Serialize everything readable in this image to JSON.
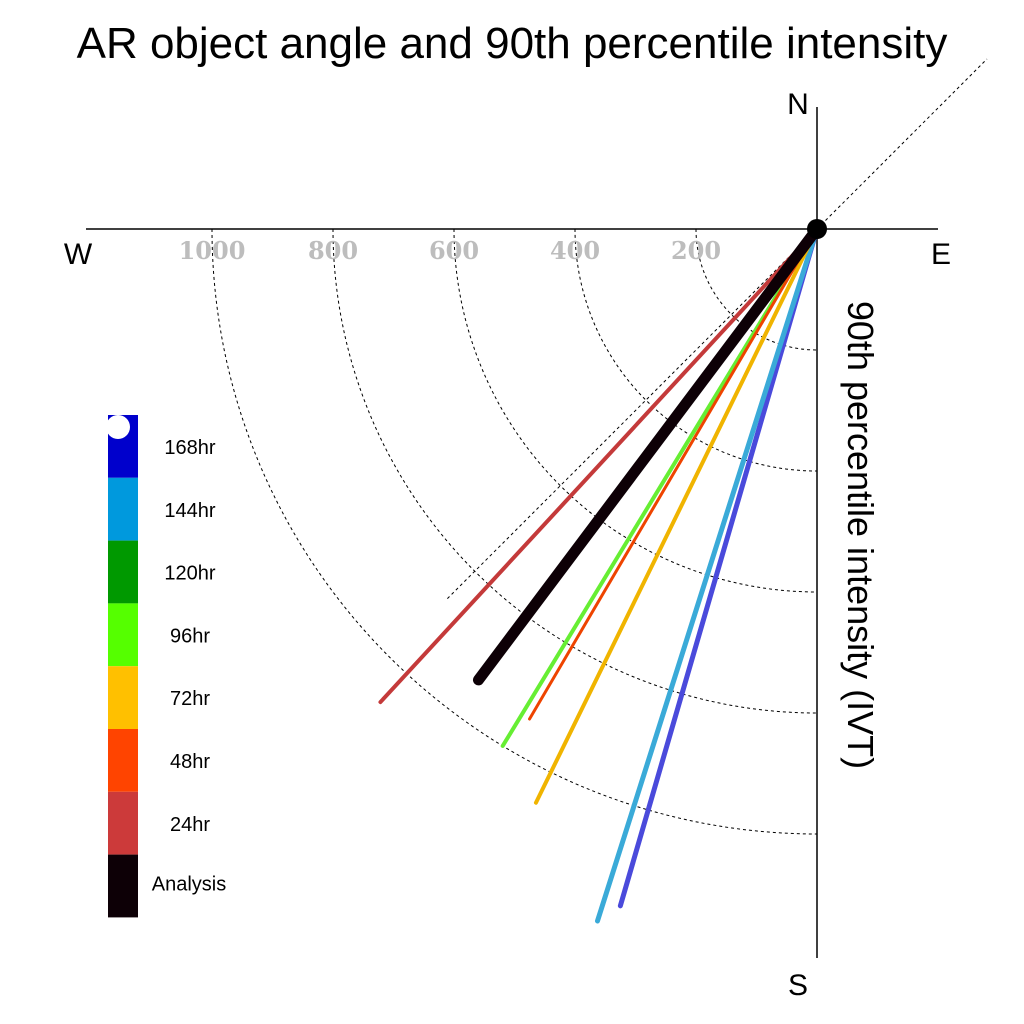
{
  "chart_data": {
    "type": "polar-vector",
    "title": "AR object angle and 90th percentile intensity",
    "ylabel": "90th percentile intensity (IVT)",
    "compass": {
      "north": "N",
      "south": "S",
      "east": "E",
      "west": "W"
    },
    "radial_ticks": [
      "200",
      "400",
      "600",
      "800",
      "1000"
    ],
    "radial_max": 1200,
    "series": [
      {
        "name": "168hr",
        "angle_deg": 196.2,
        "value": 1165,
        "color": "#0000cc",
        "draw": "#4a4adb",
        "width": 5
      },
      {
        "name": "144hr",
        "angle_deg": 197.6,
        "value": 1200,
        "color": "#0099dd",
        "draw": "#3aaad8",
        "width": 5
      },
      {
        "name": "120hr",
        "angle_deg": 211.3,
        "value": 1000,
        "color": "#009900",
        "draw": "#009900",
        "width": 3
      },
      {
        "name": "96hr",
        "angle_deg": 211.3,
        "value": 1000,
        "color": "#55ff00",
        "draw": "#66ee33",
        "width": 4
      },
      {
        "name": "72hr",
        "angle_deg": 206.1,
        "value": 1056,
        "color": "#ffc000",
        "draw": "#f0b400",
        "width": 4
      },
      {
        "name": "48hr",
        "angle_deg": 210.4,
        "value": 939,
        "color": "#ff4400",
        "draw": "#ee4400",
        "width": 3
      },
      {
        "name": "24hr",
        "angle_deg": 222.7,
        "value": 1064,
        "color": "#cc3a3a",
        "draw": "#c43a3a",
        "width": 4
      },
      {
        "name": "Analysis",
        "angle_deg": 216.9,
        "value": 932,
        "color": "#0d0006",
        "draw": "#0d0006",
        "width": 11
      }
    ],
    "legend": [
      {
        "label": "168hr",
        "color": "#0000cc"
      },
      {
        "label": "144hr",
        "color": "#0099dd"
      },
      {
        "label": "120hr",
        "color": "#009900"
      },
      {
        "label": "96hr",
        "color": "#55ff00"
      },
      {
        "label": "72hr",
        "color": "#ffc000"
      },
      {
        "label": "48hr",
        "color": "#ff4400"
      },
      {
        "label": "24hr",
        "color": "#cc3a3a"
      },
      {
        "label": "Analysis",
        "color": "#0d0006"
      }
    ],
    "legend_placement": "bottom-left",
    "grid": true
  }
}
